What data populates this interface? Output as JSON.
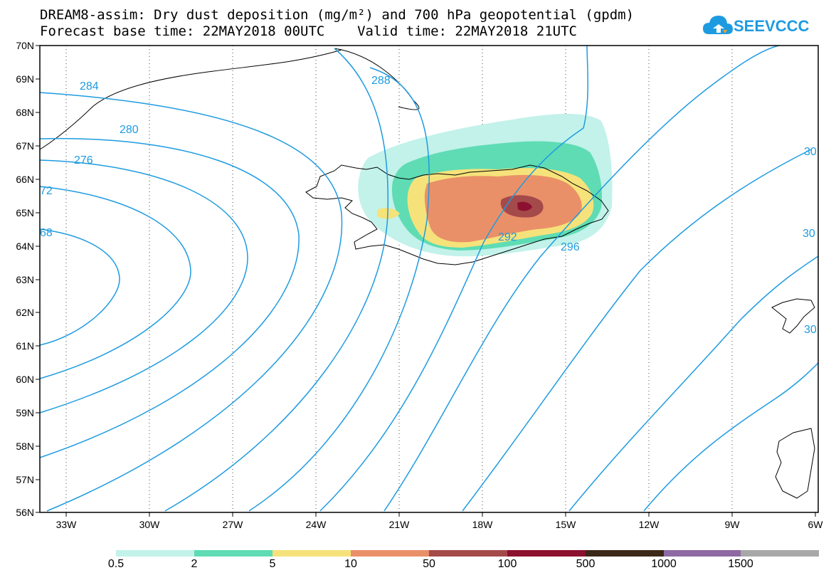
{
  "header": {
    "title_line_1": "DREAM8-assim: Dry dust deposition (mg/m²) and 700 hPa geopotential (gpdm)",
    "title_line_2": "Forecast base time: 22MAY2018 00UTC    Valid time: 22MAY2018 21UTC"
  },
  "logo": {
    "text": "SEEVCCC",
    "icon": "cloud-icon",
    "color": "#1e9be0"
  },
  "map": {
    "lat_labels": [
      "70N",
      "69N",
      "68N",
      "67N",
      "66N",
      "65N",
      "64N",
      "63N",
      "62N",
      "61N",
      "60N",
      "59N",
      "58N",
      "57N",
      "56N"
    ],
    "lon_labels": [
      "33W",
      "30W",
      "27W",
      "24W",
      "21W",
      "18W",
      "15W",
      "12W",
      "9W",
      "6W"
    ],
    "contour_color": "#1e9be0",
    "contour_labels": [
      "284",
      "288",
      "280",
      "276",
      "72",
      "68",
      "292",
      "296",
      "30",
      "30",
      "30"
    ]
  },
  "colorbar": {
    "colors": [
      "#c2f2ea",
      "#5fdcb4",
      "#f6e27a",
      "#ea9068",
      "#a54a4a",
      "#8c1030",
      "#3c2818",
      "#8e6aa4",
      "#a8a8a8"
    ],
    "labels": [
      "0.5",
      "2",
      "5",
      "10",
      "50",
      "100",
      "500",
      "1000",
      "1500"
    ]
  }
}
